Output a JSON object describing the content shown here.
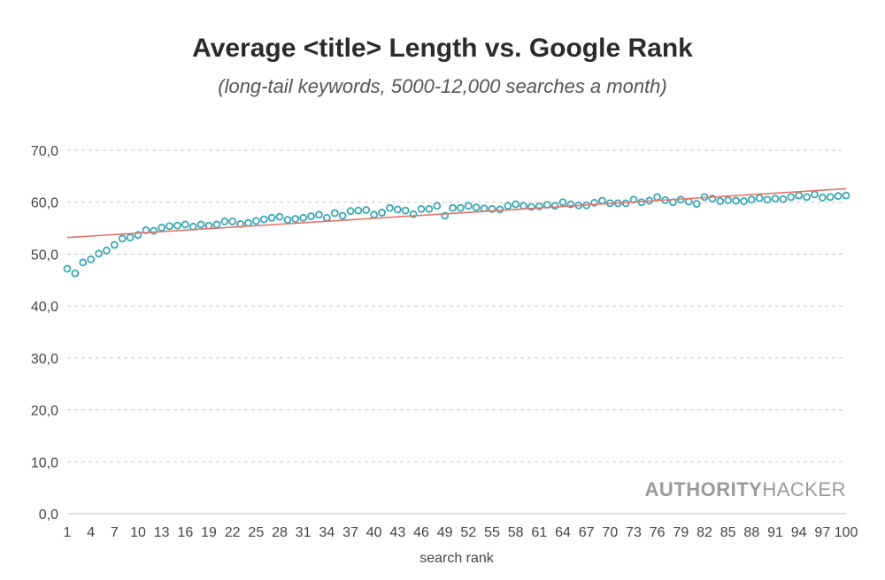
{
  "chart_data": {
    "type": "scatter",
    "title": "Average <title> Length vs. Google Rank",
    "subtitle": "(long-tail keywords, 5000-12,000 searches a month)",
    "xlabel": "search rank",
    "ylabel": "",
    "xlim": [
      1,
      100
    ],
    "ylim": [
      0,
      70
    ],
    "y_ticks": [
      "0,0",
      "10,0",
      "20,0",
      "30,0",
      "40,0",
      "50,0",
      "60,0",
      "70,0"
    ],
    "x_ticks": [
      1,
      4,
      7,
      10,
      13,
      16,
      19,
      22,
      25,
      28,
      31,
      34,
      37,
      40,
      43,
      46,
      49,
      52,
      55,
      58,
      61,
      64,
      67,
      70,
      73,
      76,
      79,
      82,
      85,
      88,
      91,
      94,
      97,
      100
    ],
    "grid": "horizontal-dashed",
    "series": [
      {
        "marker": "open-circle",
        "color": "#3aa7b5",
        "x": [
          1,
          2,
          3,
          4,
          5,
          6,
          7,
          8,
          9,
          10,
          11,
          12,
          13,
          14,
          15,
          16,
          17,
          18,
          19,
          20,
          21,
          22,
          23,
          24,
          25,
          26,
          27,
          28,
          29,
          30,
          31,
          32,
          33,
          34,
          35,
          36,
          37,
          38,
          39,
          40,
          41,
          42,
          43,
          44,
          45,
          46,
          47,
          48,
          49,
          50,
          51,
          52,
          53,
          54,
          55,
          56,
          57,
          58,
          59,
          60,
          61,
          62,
          63,
          64,
          65,
          66,
          67,
          68,
          69,
          70,
          71,
          72,
          73,
          74,
          75,
          76,
          77,
          78,
          79,
          80,
          81,
          82,
          83,
          84,
          85,
          86,
          87,
          88,
          89,
          90,
          91,
          92,
          93,
          94,
          95,
          96,
          97,
          98,
          99,
          100
        ],
        "y": [
          47.2,
          46.3,
          48.4,
          49.0,
          50.1,
          50.7,
          51.8,
          53.0,
          53.2,
          53.7,
          54.6,
          54.5,
          55.1,
          55.4,
          55.5,
          55.7,
          55.3,
          55.7,
          55.5,
          55.7,
          56.3,
          56.3,
          55.8,
          56.0,
          56.4,
          56.7,
          57.0,
          57.2,
          56.6,
          56.8,
          57.0,
          57.3,
          57.6,
          57.0,
          57.9,
          57.4,
          58.3,
          58.4,
          58.5,
          57.6,
          58.0,
          58.9,
          58.6,
          58.4,
          57.7,
          58.7,
          58.7,
          59.3,
          57.4,
          58.9,
          58.9,
          59.3,
          59.0,
          58.8,
          58.7,
          58.6,
          59.3,
          59.6,
          59.3,
          59.1,
          59.2,
          59.5,
          59.3,
          60.0,
          59.6,
          59.4,
          59.4,
          59.9,
          60.3,
          59.8,
          59.8,
          59.8,
          60.5,
          60.0,
          60.3,
          61.0,
          60.4,
          60.0,
          60.5,
          60.1,
          59.7,
          61.0,
          60.7,
          60.2,
          60.4,
          60.3,
          60.2,
          60.5,
          60.8,
          60.5,
          60.7,
          60.6,
          61.0,
          61.3,
          61.0,
          61.5,
          60.9,
          61.0,
          61.2,
          61.3
        ]
      }
    ],
    "trendline": {
      "type": "linear",
      "color": "#e4726b",
      "x": [
        1,
        100
      ],
      "y": [
        53.2,
        62.6
      ]
    }
  },
  "watermark": {
    "bold": "AUTHORITY",
    "light": "HACKER"
  }
}
